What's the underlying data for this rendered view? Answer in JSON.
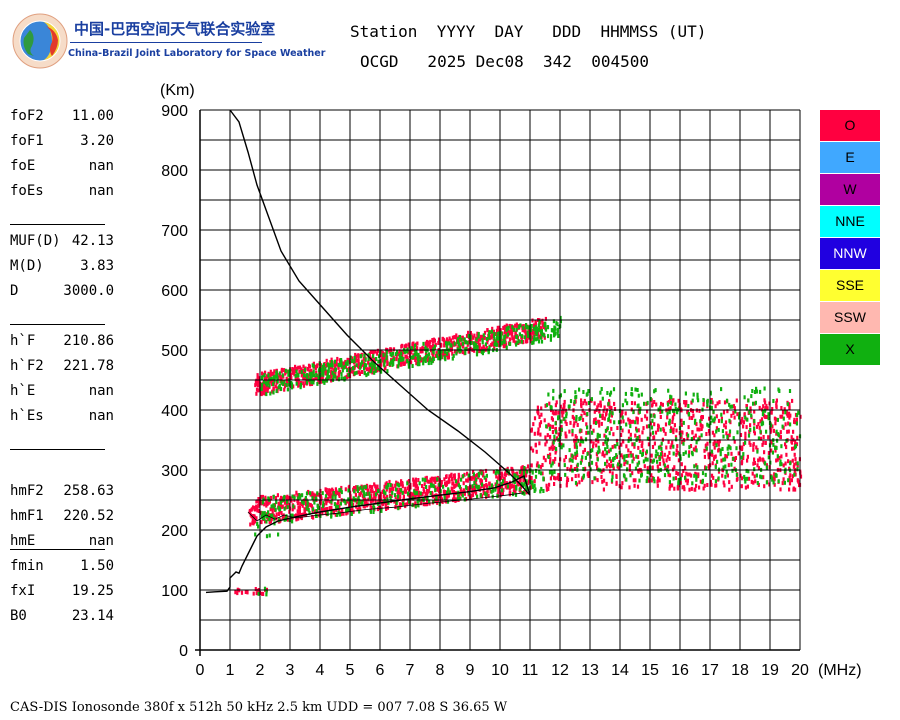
{
  "logo": {
    "cn": "中国-巴西空间天气联合实验室",
    "en": "China-Brazil Joint Laboratory for Space Weather"
  },
  "header": {
    "line1": "Station  YYYY  DAY   DDD  HHMMSS (UT)",
    "line2": "OCGD   2025 Dec08  342  004500"
  },
  "params": [
    {
      "key": "foF2",
      "value": "11.00"
    },
    {
      "key": "foF1",
      "value": "3.20"
    },
    {
      "key": "foE",
      "value": "nan"
    },
    {
      "key": "foEs",
      "value": "nan"
    },
    {
      "key": "MUF(D)",
      "value": "42.13"
    },
    {
      "key": "M(D)",
      "value": "3.83"
    },
    {
      "key": "D",
      "value": "3000.0"
    },
    {
      "key": "h`F",
      "value": "210.86"
    },
    {
      "key": "h`F2",
      "value": "221.78"
    },
    {
      "key": "h`E",
      "value": "nan"
    },
    {
      "key": "h`Es",
      "value": "nan"
    },
    {
      "key": "hmF2",
      "value": "258.63"
    },
    {
      "key": "hmF1",
      "value": "220.52"
    },
    {
      "key": "hmE",
      "value": "nan"
    },
    {
      "key": "fmin",
      "value": "1.50"
    },
    {
      "key": "fxI",
      "value": "19.25"
    },
    {
      "key": "B0",
      "value": "23.14"
    }
  ],
  "legend": [
    {
      "label": "O",
      "color": "#ff0040"
    },
    {
      "label": "E",
      "color": "#40a8ff"
    },
    {
      "label": "W",
      "color": "#b000a0"
    },
    {
      "label": "NNE",
      "color": "#00ffff"
    },
    {
      "label": "NNW",
      "color": "#2000e0"
    },
    {
      "label": "SSE",
      "color": "#ffff30"
    },
    {
      "label": "SSW",
      "color": "#ffb8b0"
    },
    {
      "label": "X",
      "color": "#10b010"
    }
  ],
  "footer": "CAS-DIS Ionosonde 380f x 512h 50 kHz 2.5 km UDD = 007 7.08 S 36.65 W",
  "chart_data": {
    "type": "scatter",
    "xlabel": "(MHz)",
    "ylabel": "(Km)",
    "xlim": [
      0,
      20
    ],
    "ylim": [
      0,
      900
    ],
    "x_ticks": [
      0,
      1,
      2,
      3,
      4,
      5,
      6,
      7,
      8,
      9,
      10,
      11,
      12,
      13,
      14,
      15,
      16,
      17,
      18,
      19,
      20
    ],
    "y_ticks": [
      0,
      100,
      200,
      300,
      400,
      500,
      600,
      700,
      800,
      900
    ],
    "grid": true,
    "series": [
      {
        "name": "O",
        "color": "#ff0040",
        "regions": [
          {
            "x": [
              1.0,
              2.3
            ],
            "y": [
              95,
              105
            ]
          },
          {
            "x": [
              1.6,
              11.0
            ],
            "y": [
              210,
              300
            ]
          },
          {
            "x": [
              11.0,
              20.0
            ],
            "y": [
              270,
              420
            ]
          },
          {
            "x": [
              1.8,
              11.5
            ],
            "y": [
              430,
              550
            ]
          }
        ]
      },
      {
        "name": "X",
        "color": "#10b010",
        "regions": [
          {
            "x": [
              1.3,
              2.2
            ],
            "y": [
              95,
              108
            ]
          },
          {
            "x": [
              1.8,
              2.6
            ],
            "y": [
              190,
              215
            ]
          },
          {
            "x": [
              2.0,
              11.5
            ],
            "y": [
              240,
              330
            ]
          },
          {
            "x": [
              11.5,
              20.0
            ],
            "y": [
              280,
              440
            ]
          },
          {
            "x": [
              2.0,
              12.0
            ],
            "y": [
              450,
              580
            ]
          }
        ]
      }
    ],
    "profile": {
      "name": "profile",
      "x": [
        0.2,
        0.5,
        0.9,
        1.0,
        1.0,
        1.2,
        1.3,
        1.4,
        1.6,
        1.9,
        2.2,
        2.6,
        3.2,
        4.0,
        5.0,
        6.0,
        7.0,
        8.0,
        9.0,
        9.8,
        10.4,
        10.8,
        11.0,
        10.7,
        10.3,
        9.5,
        8.6,
        7.6,
        6.7,
        5.8,
        4.9,
        4.1,
        3.3,
        2.7,
        2.3,
        1.9,
        1.6,
        1.3,
        1.0
      ],
      "y": [
        96,
        97,
        98,
        105,
        120,
        130,
        128,
        140,
        160,
        190,
        205,
        215,
        222,
        230,
        238,
        245,
        252,
        258,
        264,
        270,
        280,
        290,
        258,
        275,
        295,
        330,
        365,
        400,
        440,
        480,
        525,
        570,
        615,
        665,
        720,
        775,
        830,
        880,
        900
      ]
    },
    "trace": {
      "name": "h'F",
      "x": [
        1.6,
        1.9,
        2.2,
        2.5,
        2.8,
        3.2,
        3.8,
        4.6,
        5.5,
        6.5,
        7.5,
        8.5,
        9.5,
        10.2,
        10.8
      ],
      "y": [
        230,
        215,
        225,
        218,
        225,
        220,
        224,
        228,
        234,
        238,
        244,
        249,
        254,
        258,
        262
      ]
    }
  }
}
